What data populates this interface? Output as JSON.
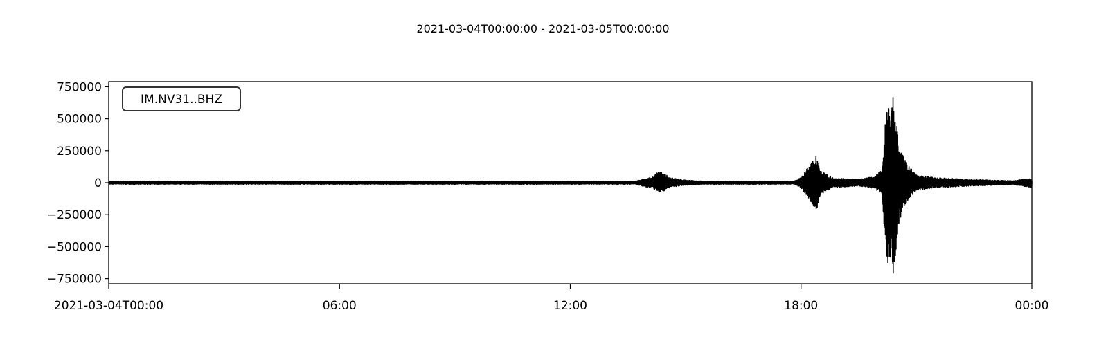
{
  "chart_data": {
    "type": "line",
    "title": "2021-03-04T00:00:00  -  2021-03-05T00:00:00",
    "xlabel": "",
    "ylabel": "",
    "legend_label": "IM.NV31..BHZ",
    "legend_position": "top-left",
    "grid": false,
    "x_unit": "hours since 2021-03-04T00:00",
    "xlim": [
      0,
      24
    ],
    "ylim": [
      -790000,
      790000
    ],
    "x_ticks": [
      {
        "value": 0,
        "label": "2021-03-04T00:00"
      },
      {
        "value": 6,
        "label": "06:00"
      },
      {
        "value": 12,
        "label": "12:00"
      },
      {
        "value": 18,
        "label": "18:00"
      },
      {
        "value": 24,
        "label": "00:00"
      }
    ],
    "y_ticks": [
      {
        "value": 750000,
        "label": "750000"
      },
      {
        "value": 500000,
        "label": "500000"
      },
      {
        "value": 250000,
        "label": "250000"
      },
      {
        "value": 0,
        "label": "0"
      },
      {
        "value": -250000,
        "label": "−250000"
      },
      {
        "value": -500000,
        "label": "−500000"
      },
      {
        "value": -750000,
        "label": "−750000"
      }
    ],
    "series": [
      {
        "name": "IM.NV31..BHZ",
        "color": "#000000",
        "envelope": [
          {
            "x": 0.0,
            "max": 12000,
            "min": -12000
          },
          {
            "x": 13.7,
            "max": 12000,
            "min": -12000
          },
          {
            "x": 13.9,
            "max": 30000,
            "min": -30000
          },
          {
            "x": 14.1,
            "max": 40000,
            "min": -40000
          },
          {
            "x": 14.3,
            "max": 90000,
            "min": -75000
          },
          {
            "x": 14.45,
            "max": 70000,
            "min": -65000
          },
          {
            "x": 14.6,
            "max": 40000,
            "min": -35000
          },
          {
            "x": 15.0,
            "max": 20000,
            "min": -20000
          },
          {
            "x": 15.5,
            "max": 12000,
            "min": -12000
          },
          {
            "x": 17.8,
            "max": 12000,
            "min": -12000
          },
          {
            "x": 18.0,
            "max": 40000,
            "min": -40000
          },
          {
            "x": 18.2,
            "max": 130000,
            "min": -120000
          },
          {
            "x": 18.4,
            "max": 230000,
            "min": -220000
          },
          {
            "x": 18.5,
            "max": 100000,
            "min": -95000
          },
          {
            "x": 18.8,
            "max": 40000,
            "min": -40000
          },
          {
            "x": 19.5,
            "max": 25000,
            "min": -25000
          },
          {
            "x": 19.9,
            "max": 50000,
            "min": -45000
          },
          {
            "x": 20.1,
            "max": 100000,
            "min": -90000
          },
          {
            "x": 20.22,
            "max": 600000,
            "min": -610000
          },
          {
            "x": 20.4,
            "max": 700000,
            "min": -710000
          },
          {
            "x": 20.55,
            "max": 300000,
            "min": -300000
          },
          {
            "x": 20.75,
            "max": 150000,
            "min": -150000
          },
          {
            "x": 21.0,
            "max": 60000,
            "min": -60000
          },
          {
            "x": 21.5,
            "max": 40000,
            "min": -40000
          },
          {
            "x": 22.5,
            "max": 25000,
            "min": -25000
          },
          {
            "x": 23.5,
            "max": 15000,
            "min": -15000
          },
          {
            "x": 23.95,
            "max": 35000,
            "min": -35000
          },
          {
            "x": 24.0,
            "max": 15000,
            "min": -40000
          }
        ]
      }
    ]
  }
}
